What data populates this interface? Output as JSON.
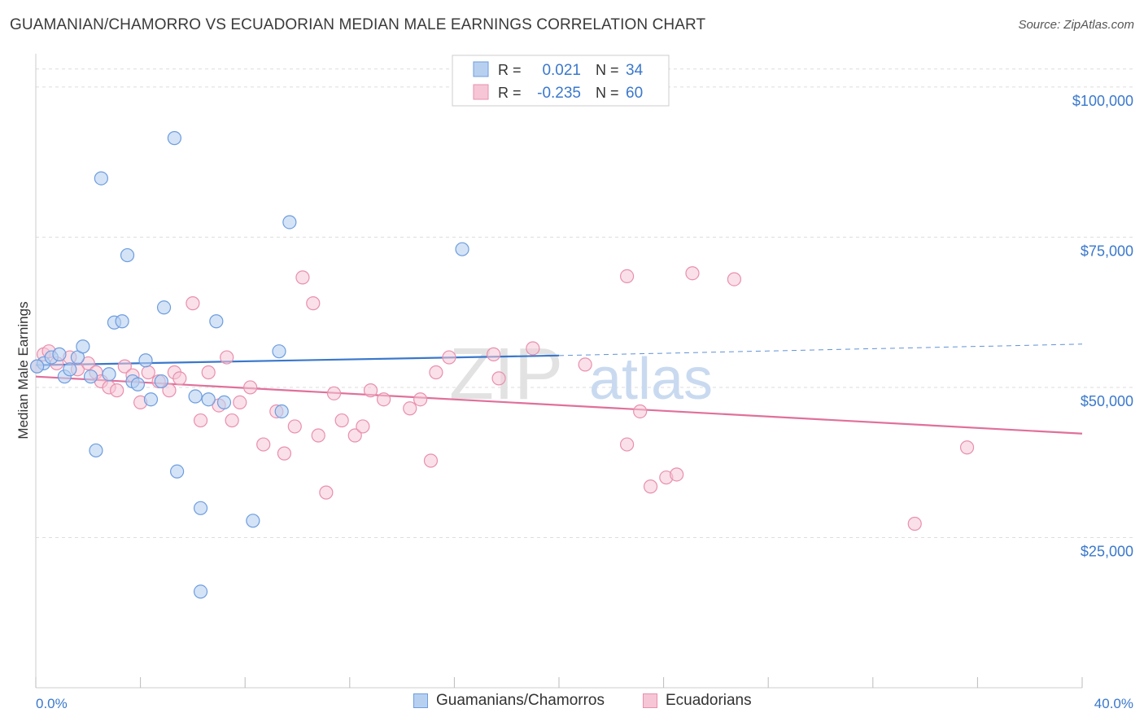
{
  "title": "GUAMANIAN/CHAMORRO VS ECUADORIAN MEDIAN MALE EARNINGS CORRELATION CHART",
  "source": "Source: ZipAtlas.com",
  "watermark": {
    "zip": "ZIP",
    "atlas": "atlas"
  },
  "legend_top": [
    {
      "r_label": "R =",
      "r_value": "0.021",
      "n_label": "N =",
      "n_value": "34"
    },
    {
      "r_label": "R =",
      "r_value": "-0.235",
      "n_label": "N =",
      "n_value": "60"
    }
  ],
  "legend_bottom": [
    "Guamanians/Chamorros",
    "Ecuadorians"
  ],
  "colors": {
    "blue_fill": "#b8d0f0",
    "blue_stroke": "#6d9de0",
    "blue_line": "#3a78cc",
    "pink_fill": "#f6c6d6",
    "pink_stroke": "#e98fae",
    "pink_line": "#e0709a",
    "axis_label": "#3a78cc",
    "grid": "#dddddd"
  },
  "chart_data": {
    "type": "scatter",
    "title": "GUAMANIAN/CHAMORRO VS ECUADORIAN MEDIAN MALE EARNINGS CORRELATION CHART",
    "xlabel": "",
    "ylabel": "Median Male Earnings",
    "xlim": [
      0,
      40
    ],
    "ylim": [
      0,
      105000
    ],
    "x_tick_labels": [
      "0.0%",
      "40.0%"
    ],
    "y_ticks": [
      {
        "value": 25000,
        "label": "$25,000"
      },
      {
        "value": 50000,
        "label": "$50,000"
      },
      {
        "value": 75000,
        "label": "$75,000"
      },
      {
        "value": 100000,
        "label": "$100,000"
      }
    ],
    "grid": true,
    "legend_position": "top-center",
    "series": [
      {
        "name": "Guamanians/Chamorros",
        "r": 0.021,
        "n": 34,
        "trend": {
          "x": [
            0,
            20
          ],
          "y": [
            53700,
            55300
          ],
          "dashed_extension_to": [
            40,
            57200
          ]
        },
        "points": [
          [
            0.3,
            54000
          ],
          [
            0.6,
            55000
          ],
          [
            0.9,
            55500
          ],
          [
            1.1,
            51800
          ],
          [
            1.3,
            53000
          ],
          [
            1.6,
            55000
          ],
          [
            1.8,
            56800
          ],
          [
            2.1,
            51800
          ],
          [
            2.3,
            39500
          ],
          [
            2.5,
            84800
          ],
          [
            2.8,
            52200
          ],
          [
            3.0,
            60800
          ],
          [
            3.3,
            61000
          ],
          [
            3.5,
            72000
          ],
          [
            3.7,
            51000
          ],
          [
            3.9,
            50500
          ],
          [
            4.2,
            54500
          ],
          [
            4.4,
            48000
          ],
          [
            4.8,
            51000
          ],
          [
            4.9,
            63300
          ],
          [
            5.3,
            91500
          ],
          [
            5.4,
            36000
          ],
          [
            6.1,
            48500
          ],
          [
            6.3,
            29900
          ],
          [
            6.3,
            16000
          ],
          [
            6.6,
            48000
          ],
          [
            6.9,
            61000
          ],
          [
            7.2,
            47500
          ],
          [
            8.3,
            27800
          ],
          [
            9.3,
            56000
          ],
          [
            9.4,
            46000
          ],
          [
            9.7,
            77500
          ],
          [
            16.3,
            73000
          ],
          [
            0.05,
            53500
          ]
        ]
      },
      {
        "name": "Ecuadorians",
        "r": -0.235,
        "n": 60,
        "trend": {
          "x": [
            0,
            40
          ],
          "y": [
            51800,
            42300
          ]
        },
        "points": [
          [
            0.05,
            53500
          ],
          [
            0.3,
            55500
          ],
          [
            0.5,
            56000
          ],
          [
            0.8,
            54000
          ],
          [
            1.3,
            55000
          ],
          [
            1.6,
            53000
          ],
          [
            2.0,
            54000
          ],
          [
            2.3,
            52500
          ],
          [
            2.5,
            51000
          ],
          [
            2.8,
            50000
          ],
          [
            3.1,
            49500
          ],
          [
            3.4,
            53500
          ],
          [
            3.7,
            52000
          ],
          [
            4.0,
            47500
          ],
          [
            4.3,
            52500
          ],
          [
            4.7,
            51000
          ],
          [
            5.1,
            49500
          ],
          [
            5.3,
            52500
          ],
          [
            5.5,
            51500
          ],
          [
            6.0,
            64000
          ],
          [
            6.3,
            44500
          ],
          [
            6.6,
            52500
          ],
          [
            7.0,
            47000
          ],
          [
            7.3,
            55000
          ],
          [
            7.5,
            44500
          ],
          [
            7.8,
            47500
          ],
          [
            8.2,
            50000
          ],
          [
            8.7,
            40500
          ],
          [
            9.2,
            46000
          ],
          [
            9.5,
            39000
          ],
          [
            9.9,
            43500
          ],
          [
            10.2,
            68300
          ],
          [
            10.6,
            64000
          ],
          [
            10.8,
            42000
          ],
          [
            11.1,
            32500
          ],
          [
            11.4,
            49000
          ],
          [
            11.7,
            44500
          ],
          [
            12.2,
            42000
          ],
          [
            12.5,
            43500
          ],
          [
            12.8,
            49500
          ],
          [
            13.3,
            48000
          ],
          [
            14.3,
            46500
          ],
          [
            14.7,
            48000
          ],
          [
            15.1,
            37800
          ],
          [
            15.3,
            52500
          ],
          [
            15.8,
            55000
          ],
          [
            17.5,
            55500
          ],
          [
            17.7,
            51500
          ],
          [
            19.0,
            56500
          ],
          [
            21.0,
            53800
          ],
          [
            22.6,
            40500
          ],
          [
            22.6,
            68500
          ],
          [
            23.1,
            46000
          ],
          [
            23.5,
            33500
          ],
          [
            24.1,
            35000
          ],
          [
            24.5,
            35500
          ],
          [
            25.1,
            69000
          ],
          [
            26.7,
            68000
          ],
          [
            33.6,
            27300
          ],
          [
            35.6,
            40000
          ]
        ]
      }
    ]
  }
}
